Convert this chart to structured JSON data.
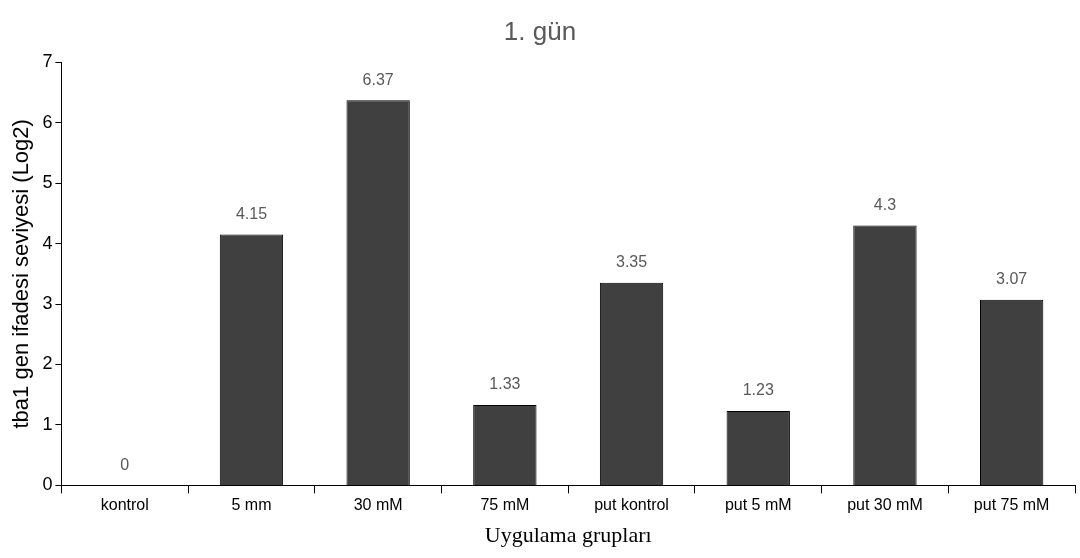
{
  "chart_data": {
    "type": "bar",
    "title": "1. gün",
    "xlabel": "Uygulama grupları",
    "ylabel": "tba1 gen ifadesi seviyesi (Log2)",
    "categories": [
      "kontrol",
      "5 mm",
      "30 mM",
      "75 mM",
      "put kontrol",
      "put 5 mM",
      "put 30 mM",
      "put 75 mM"
    ],
    "values": [
      0,
      4.15,
      6.37,
      1.33,
      3.35,
      1.23,
      4.3,
      3.07
    ],
    "color": "#404040",
    "ylim": [
      0,
      7
    ],
    "yticks": [
      0,
      1,
      2,
      3,
      4,
      5,
      6,
      7
    ],
    "grid": false,
    "legend": false,
    "data_labels": true
  }
}
